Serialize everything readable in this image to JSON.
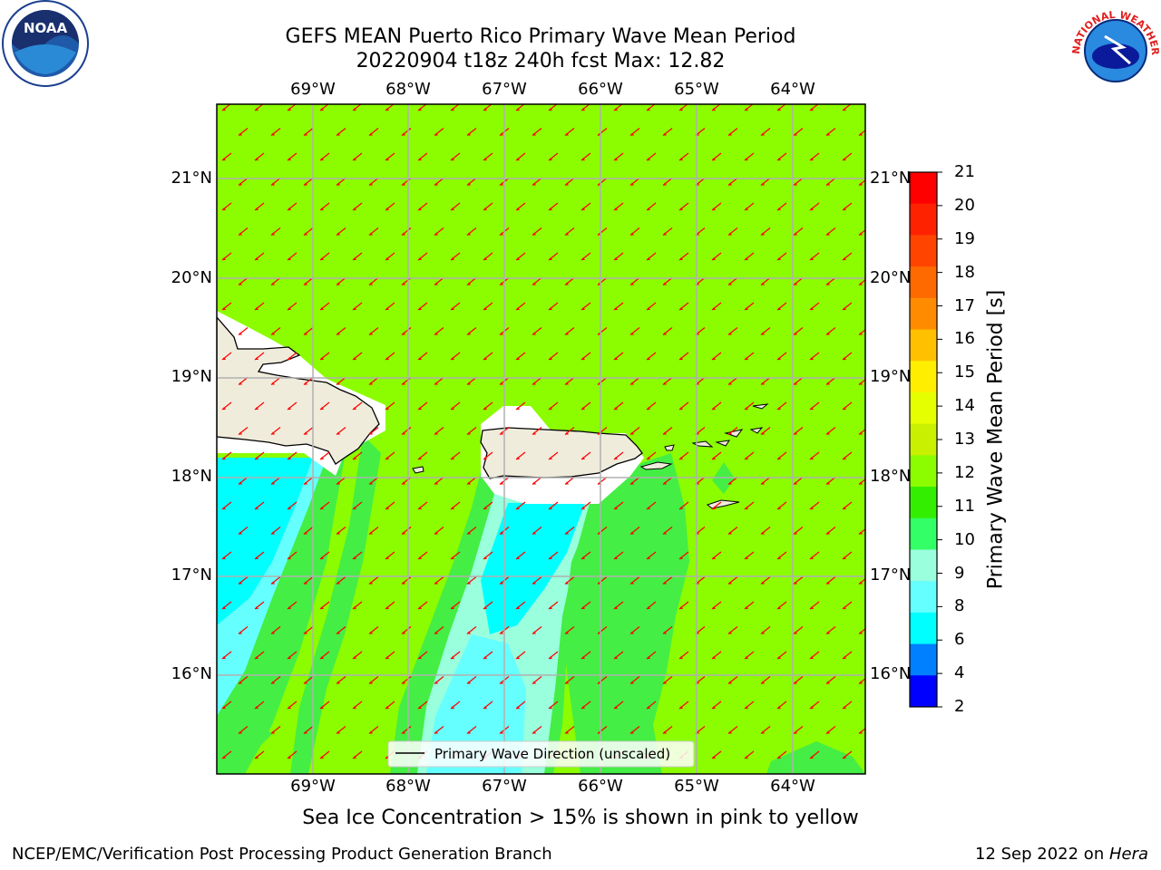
{
  "title": {
    "line1": "GEFS MEAN Puerto Rico Primary Wave Mean Period",
    "line2": "20220904 t18z 240h fcst   Max: 12.82"
  },
  "axes": {
    "lon_labels": [
      "69°W",
      "68°W",
      "67°W",
      "66°W",
      "65°W",
      "64°W"
    ],
    "lat_labels": [
      "21°N",
      "20°N",
      "19°N",
      "18°N",
      "17°N",
      "16°N"
    ]
  },
  "legend": {
    "label": "Primary Wave Direction (unscaled)"
  },
  "colorbar": {
    "title": "Primary Wave Mean Period [s]",
    "ticks": [
      "21",
      "20",
      "19",
      "18",
      "17",
      "16",
      "15",
      "14",
      "13",
      "12",
      "11",
      "10",
      "9",
      "8",
      "6",
      "4",
      "2"
    ],
    "colors": [
      "#ff0000",
      "#ff2200",
      "#ff4400",
      "#ff6a00",
      "#ff8c00",
      "#ffc000",
      "#ffee00",
      "#e6ff00",
      "#c8f000",
      "#8cfc00",
      "#33ee00",
      "#33ff66",
      "#99ffdd",
      "#66ffff",
      "#00ffff",
      "#0080ff",
      "#0000ff"
    ]
  },
  "map": {
    "field_colors": {
      "base": "#8cfc00",
      "green": "#44ee44",
      "cyan": "#00ffff",
      "light_cyan": "#66ffff",
      "pale": "#99ffdd",
      "land": "#efecdc",
      "arrow": "#ff0000"
    }
  },
  "notes": {
    "sea_ice": "Sea Ice Concentration > 15% is shown in pink to yellow",
    "footer_left": "NCEP/EMC/Verification Post Processing Product Generation Branch",
    "footer_right": "12 Sep 2022 on ",
    "footer_host": "Hera"
  },
  "logos": {
    "noaa": "NOAA",
    "nws": "NATIONAL WEATHER SERVICE"
  }
}
